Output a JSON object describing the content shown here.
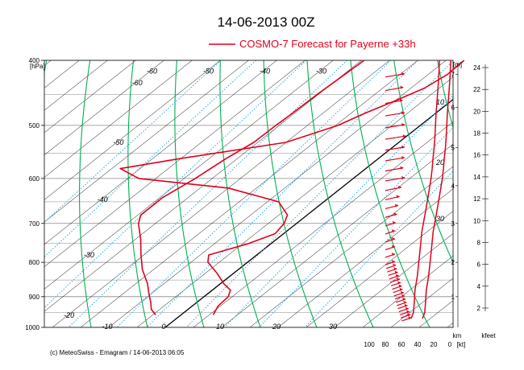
{
  "title": "14-06-2013  00Z",
  "legend": {
    "label": "COSMO-7 Forecast for Payerne   +33h",
    "color": "#e0001b"
  },
  "footer": "(c) MeteoSwiss - Emagram  /  14-06-2013  06:05",
  "chart_data": {
    "type": "line",
    "pressure_unit": "[hPa]",
    "pressure_ticks": [
      400,
      500,
      600,
      700,
      800,
      900,
      1000
    ],
    "ylim": [
      400,
      1000
    ],
    "temperature_ticks": [
      -10,
      0,
      10,
      20,
      30
    ],
    "xlim": [
      -20,
      36
    ],
    "isotherm_labels": [
      {
        "t": -60,
        "p": 415
      },
      {
        "t": -50,
        "p": 415
      },
      {
        "t": -40,
        "p": 415
      },
      {
        "t": -30,
        "p": 415
      },
      {
        "t": -20,
        "p": 415
      },
      {
        "t": -60,
        "p": 432
      },
      {
        "t": -50,
        "p": 530
      },
      {
        "t": -40,
        "p": 645
      },
      {
        "t": -30,
        "p": 780
      },
      {
        "t": -20,
        "p": 960
      }
    ],
    "isotherm_extra_labels": [
      {
        "text": "10",
        "pos": "upper"
      },
      {
        "text": "20",
        "pos": "mid"
      },
      {
        "text": "30",
        "pos": "lower"
      }
    ],
    "temperature_series": {
      "name": "",
      "points": [
        [
          400,
          -6.8
        ],
        [
          420,
          -6.6
        ],
        [
          440,
          -7.6
        ],
        [
          460,
          -10
        ],
        [
          480,
          -12.6
        ],
        [
          500,
          -14.6
        ],
        [
          530,
          -20
        ],
        [
          560,
          -35
        ],
        [
          580,
          -43.5
        ],
        [
          600,
          -38
        ],
        [
          620,
          -20
        ],
        [
          650,
          -8
        ],
        [
          680,
          -3.5
        ],
        [
          700,
          -2.2
        ],
        [
          725,
          -1.5
        ],
        [
          750,
          -4
        ],
        [
          780,
          -8.5
        ],
        [
          800,
          -7
        ],
        [
          830,
          -3
        ],
        [
          860,
          0.5
        ],
        [
          880,
          3.2
        ],
        [
          900,
          4.3
        ],
        [
          930,
          4.6
        ],
        [
          958,
          5.7
        ]
      ]
    },
    "dewpoint_series": {
      "name": "",
      "points": [
        [
          400,
          -24.5
        ],
        [
          420,
          -24.8
        ],
        [
          450,
          -25.2
        ],
        [
          480,
          -25.4
        ],
        [
          500,
          -25.6
        ],
        [
          530,
          -25.7
        ],
        [
          560,
          -27
        ],
        [
          600,
          -28
        ],
        [
          640,
          -29.5
        ],
        [
          680,
          -29.5
        ],
        [
          700,
          -28
        ],
        [
          740,
          -24
        ],
        [
          780,
          -20.5
        ],
        [
          820,
          -17
        ],
        [
          860,
          -13
        ],
        [
          890,
          -10.5
        ],
        [
          920,
          -8
        ],
        [
          940,
          -6.5
        ],
        [
          958,
          -4.5
        ]
      ]
    },
    "height_axis": {
      "unit": "[m]",
      "ticks": [
        "1",
        "2",
        "3",
        "4",
        "5",
        "6",
        "7"
      ]
    },
    "feet_axis": {
      "unit": "kfeet",
      "ticks": [
        "2",
        "4",
        "6",
        "8",
        "10",
        "12",
        "14",
        "16",
        "18",
        "20",
        "22",
        "24"
      ]
    },
    "wind_axis": {
      "unit": "[kt]",
      "distance_unit": "km",
      "ticks": [
        "100",
        "80",
        "60",
        "40",
        "20",
        "0"
      ]
    },
    "wind_profile": {
      "name": "",
      "points": [
        [
          400,
          3
        ],
        [
          420,
          3.8
        ],
        [
          440,
          5
        ],
        [
          460,
          6.2
        ],
        [
          480,
          7.5
        ],
        [
          500,
          8.2
        ],
        [
          520,
          9
        ],
        [
          540,
          10
        ],
        [
          560,
          11.5
        ],
        [
          580,
          12.5
        ],
        [
          600,
          14
        ],
        [
          640,
          18
        ],
        [
          680,
          22
        ],
        [
          720,
          26
        ],
        [
          760,
          28
        ],
        [
          800,
          30
        ],
        [
          840,
          32
        ],
        [
          880,
          35
        ],
        [
          920,
          36
        ],
        [
          950,
          37
        ],
        [
          970,
          40
        ]
      ]
    },
    "wind_barbs": [
      {
        "p": 420,
        "kt": 30
      },
      {
        "p": 440,
        "kt": 28
      },
      {
        "p": 460,
        "kt": 27
      },
      {
        "p": 480,
        "kt": 30
      },
      {
        "p": 500,
        "kt": 30
      },
      {
        "p": 520,
        "kt": 32
      },
      {
        "p": 540,
        "kt": 30
      },
      {
        "p": 560,
        "kt": 30
      },
      {
        "p": 580,
        "kt": 28
      },
      {
        "p": 600,
        "kt": 30
      },
      {
        "p": 620,
        "kt": 25
      },
      {
        "p": 640,
        "kt": 22
      },
      {
        "p": 660,
        "kt": 20
      },
      {
        "p": 680,
        "kt": 18
      },
      {
        "p": 700,
        "kt": 16
      },
      {
        "p": 720,
        "kt": 14
      },
      {
        "p": 740,
        "kt": 12
      },
      {
        "p": 760,
        "kt": 10
      },
      {
        "p": 780,
        "kt": 8
      },
      {
        "p": 800,
        "kt": 6
      },
      {
        "p": 810,
        "kt": 6
      },
      {
        "p": 820,
        "kt": 6
      },
      {
        "p": 830,
        "kt": 6
      },
      {
        "p": 840,
        "kt": 6
      },
      {
        "p": 850,
        "kt": 8
      },
      {
        "p": 860,
        "kt": 8
      },
      {
        "p": 870,
        "kt": 8
      },
      {
        "p": 880,
        "kt": 8
      },
      {
        "p": 890,
        "kt": 8
      },
      {
        "p": 900,
        "kt": 8
      },
      {
        "p": 910,
        "kt": 8
      },
      {
        "p": 920,
        "kt": 10
      },
      {
        "p": 930,
        "kt": 10
      },
      {
        "p": 940,
        "kt": 10
      },
      {
        "p": 950,
        "kt": 10
      },
      {
        "p": 960,
        "kt": 10
      },
      {
        "p": 970,
        "kt": 10
      }
    ],
    "grid": true,
    "colors": {
      "isotherm": "#000000",
      "dry_adiabat": "#00b050",
      "mixing_ratio": "#29a8d6",
      "isobar": "#888888",
      "profile": "#e0001b"
    }
  }
}
